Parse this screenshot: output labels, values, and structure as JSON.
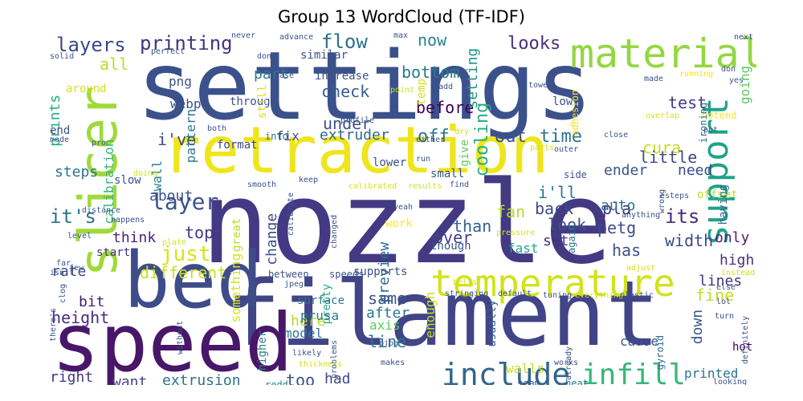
{
  "title": "Group 13 WordCloud (TF-IDF)",
  "words": [
    {
      "id": "settings",
      "text": "settings",
      "color": "#3b518b"
    },
    {
      "id": "nozzle",
      "text": "nozzle",
      "color": "#443983"
    },
    {
      "id": "filament",
      "text": "filament",
      "color": "#414487"
    },
    {
      "id": "speed",
      "text": "speed",
      "color": "#481769"
    },
    {
      "id": "retraction",
      "text": "retraction",
      "color": "#efe51c"
    },
    {
      "id": "slicer",
      "text": "slicer",
      "color": "#a0da39"
    },
    {
      "id": "bed",
      "text": "bed",
      "color": "#3e4c8a"
    },
    {
      "id": "temperature",
      "text": "temperature",
      "color": "#d2e21b"
    },
    {
      "id": "material",
      "text": "material",
      "color": "#93d741"
    },
    {
      "id": "support",
      "text": "support",
      "color": "#1fa287"
    },
    {
      "id": "layer",
      "text": "layer",
      "color": "#3b528b"
    },
    {
      "id": "include",
      "text": "include",
      "color": "#31668e"
    },
    {
      "id": "infill",
      "text": "infill",
      "color": "#35b779"
    },
    {
      "id": "printing",
      "text": "printing",
      "color": "#46337e"
    },
    {
      "id": "layers",
      "text": "layers",
      "color": "#3e4989"
    },
    {
      "id": "flow",
      "text": "flow",
      "color": "#2d708e"
    },
    {
      "id": "just",
      "text": "just",
      "color": "#d8e219"
    },
    {
      "id": "its-apos",
      "text": "it's",
      "color": "#2c728e"
    },
    {
      "id": "looks",
      "text": "looks",
      "color": "#46307e"
    },
    {
      "id": "check",
      "text": "check",
      "color": "#365c8d"
    },
    {
      "id": "now",
      "text": "now",
      "color": "#25838e"
    },
    {
      "id": "bottom",
      "text": "bottom",
      "color": "#2a788e"
    },
    {
      "id": "before",
      "text": "before",
      "color": "#440154"
    },
    {
      "id": "off",
      "text": "off",
      "color": "#2c728e"
    },
    {
      "id": "under",
      "text": "under",
      "color": "#3b528b"
    },
    {
      "id": "setting",
      "text": "setting",
      "color": "#21918c"
    },
    {
      "id": "cooling",
      "text": "cooling",
      "color": "#27ad81"
    },
    {
      "id": "out",
      "text": "out",
      "color": "#3b528b"
    },
    {
      "id": "time",
      "text": "time",
      "color": "#2c728e"
    },
    {
      "id": "test",
      "text": "test",
      "color": "#443983"
    },
    {
      "id": "cura",
      "text": "cura",
      "color": "#c2df23"
    },
    {
      "id": "ive",
      "text": "i've",
      "color": "#3f4889"
    },
    {
      "id": "extruder",
      "text": "extruder",
      "color": "#31688e"
    },
    {
      "id": "fix",
      "text": "fix",
      "color": "#3e4989"
    },
    {
      "id": "into",
      "text": "into",
      "color": "#2f6c8e"
    },
    {
      "id": "format",
      "text": "format",
      "color": "#3e4989"
    },
    {
      "id": "webp",
      "text": "webp",
      "color": "#3b528b"
    },
    {
      "id": "png",
      "text": "png",
      "color": "#3a548c"
    },
    {
      "id": "pattern",
      "text": "pattern",
      "color": "#2a788e"
    },
    {
      "id": "part",
      "text": "part",
      "color": "#2a788e"
    },
    {
      "id": "all",
      "text": "all",
      "color": "#b5de2b"
    },
    {
      "id": "prints",
      "text": "prints",
      "color": "#27ad81"
    },
    {
      "id": "calibration",
      "text": "calibration",
      "color": "#35b779"
    },
    {
      "id": "wall",
      "text": "wall",
      "color": "#26828e"
    },
    {
      "id": "steps",
      "text": "steps",
      "color": "#2c728e"
    },
    {
      "id": "about",
      "text": "about",
      "color": "#3b528b"
    },
    {
      "id": "top",
      "text": "top",
      "color": "#443a83"
    },
    {
      "id": "think",
      "text": "think",
      "color": "#482475"
    },
    {
      "id": "rate",
      "text": "rate",
      "color": "#404688"
    },
    {
      "id": "different",
      "text": "different",
      "color": "#c8e020"
    },
    {
      "id": "bit",
      "text": "bit",
      "color": "#481a6c"
    },
    {
      "id": "height",
      "text": "height",
      "color": "#472d7b"
    },
    {
      "id": "right",
      "text": "right",
      "color": "#453781"
    },
    {
      "id": "want",
      "text": "want",
      "color": "#414487"
    },
    {
      "id": "extrusion",
      "text": "extrusion",
      "color": "#2c728e"
    },
    {
      "id": "too",
      "text": "too",
      "color": "#3b528b"
    },
    {
      "id": "had",
      "text": "had",
      "color": "#3e4a89"
    },
    {
      "id": "redd",
      "text": "redd",
      "color": "#26828e"
    },
    {
      "id": "change",
      "text": "change",
      "color": "#3e4c8a"
    },
    {
      "id": "preview",
      "text": "preview",
      "color": "#2e6e8e"
    },
    {
      "id": "pretty",
      "text": "pretty",
      "color": "#28ae80"
    },
    {
      "id": "work",
      "text": "work",
      "color": "#fde725"
    },
    {
      "id": "fan",
      "text": "fan",
      "color": "#b2dd2d"
    },
    {
      "id": "ill",
      "text": "i'll",
      "color": "#2a788e"
    },
    {
      "id": "back",
      "text": "back",
      "color": "#3f4889"
    },
    {
      "id": "look",
      "text": "look",
      "color": "#3b528b"
    },
    {
      "id": "set",
      "text": "set",
      "color": "#46327e"
    },
    {
      "id": "than",
      "text": "than",
      "color": "#33638d"
    },
    {
      "id": "over",
      "text": "over",
      "color": "#424086"
    },
    {
      "id": "though",
      "text": "though",
      "color": "#39568c"
    },
    {
      "id": "fast",
      "text": "fast",
      "color": "#21a685"
    },
    {
      "id": "again",
      "text": "again",
      "color": "#2c728e"
    },
    {
      "id": "ender",
      "text": "ender",
      "color": "#3b528b"
    },
    {
      "id": "little",
      "text": "little",
      "color": "#3e4a89"
    },
    {
      "id": "need",
      "text": "need",
      "color": "#3e4989"
    },
    {
      "id": "pla",
      "text": "pla",
      "color": "#46337e"
    },
    {
      "id": "auto",
      "text": "auto",
      "color": "#2c728e"
    },
    {
      "id": "its",
      "text": "its",
      "color": "#472c7a"
    },
    {
      "id": "petg",
      "text": "petg",
      "color": "#3e4989"
    },
    {
      "id": "has",
      "text": "has",
      "color": "#3b528b"
    },
    {
      "id": "width",
      "text": "width",
      "color": "#3e4989"
    },
    {
      "id": "only",
      "text": "only",
      "color": "#481f70"
    },
    {
      "id": "high",
      "text": "high",
      "color": "#46327e"
    },
    {
      "id": "lines",
      "text": "lines",
      "color": "#46337e"
    },
    {
      "id": "fine",
      "text": "fine",
      "color": "#c0df25"
    },
    {
      "id": "offset",
      "text": "offset",
      "color": "#bddf26"
    },
    {
      "id": "having",
      "text": "having",
      "color": "#2f6c8e"
    },
    {
      "id": "something",
      "text": "something",
      "color": "#dae319"
    },
    {
      "id": "surface",
      "text": "surface",
      "color": "#2a788e"
    },
    {
      "id": "same",
      "text": "same",
      "color": "#3b528b"
    },
    {
      "id": "between",
      "text": "between",
      "color": "#3b528b"
    },
    {
      "id": "speeds",
      "text": "speeds",
      "color": "#3b528b"
    },
    {
      "id": "supports",
      "text": "supports",
      "color": "#3b528b"
    },
    {
      "id": "here",
      "text": "here",
      "color": "#b2dd2d"
    },
    {
      "id": "after",
      "text": "after",
      "color": "#2a788e"
    },
    {
      "id": "model",
      "text": "model",
      "color": "#2a788e"
    },
    {
      "id": "prusa",
      "text": "prusa",
      "color": "#2a788e"
    },
    {
      "id": "line",
      "text": "line",
      "color": "#2a788e"
    },
    {
      "id": "axis",
      "text": "axis",
      "color": "#5ec962"
    },
    {
      "id": "enough",
      "text": "enough",
      "color": "#c2df23"
    },
    {
      "id": "usually",
      "text": "usually",
      "color": "#33638d"
    },
    {
      "id": "down",
      "text": "down",
      "color": "#39568c"
    },
    {
      "id": "gyroid",
      "text": "gyroid",
      "color": "#2f6c8e"
    },
    {
      "id": "hot",
      "text": "hot",
      "color": "#440154"
    },
    {
      "id": "cause",
      "text": "cause",
      "color": "#3b528b"
    },
    {
      "id": "printed",
      "text": "printed",
      "color": "#2c728e"
    },
    {
      "id": "walls",
      "text": "walls",
      "color": "#c8e020"
    },
    {
      "id": "seam",
      "text": "seam",
      "color": "#3b528b"
    },
    {
      "id": "heat",
      "text": "heat",
      "color": "#2c728e"
    },
    {
      "id": "higher",
      "text": "higher",
      "color": "#26828e"
    },
    {
      "id": "great",
      "text": "great",
      "color": "#b8de29"
    },
    {
      "id": "start",
      "text": "start",
      "color": "#46317e"
    },
    {
      "id": "lower",
      "text": "lower",
      "color": "#3b528b"
    },
    {
      "id": "small",
      "text": "small",
      "color": "#3b528b"
    },
    {
      "id": "slow",
      "text": "slow",
      "color": "#3b528b"
    },
    {
      "id": "hotend",
      "text": "hotend",
      "color": "#fde725"
    },
    {
      "id": "side",
      "text": "side",
      "color": "#3b528b"
    },
    {
      "id": "ironing",
      "text": "ironing",
      "color": "#2c728e"
    },
    {
      "id": "adhesion",
      "text": "adhesion",
      "color": "#f1e51d"
    },
    {
      "id": "low",
      "text": "low",
      "color": "#3b528b"
    },
    {
      "id": "through",
      "text": "through",
      "color": "#3b528b"
    },
    {
      "id": "still",
      "text": "still",
      "color": "#d8e219"
    },
    {
      "id": "temp",
      "text": "temp",
      "color": "#d5e21a"
    },
    {
      "id": "increase",
      "text": "increase",
      "color": "#3b528b"
    },
    {
      "id": "similar",
      "text": "similar",
      "color": "#3b528b"
    },
    {
      "id": "around",
      "text": "around",
      "color": "#d5e21a"
    },
    {
      "id": "end",
      "text": "end",
      "color": "#3b528b"
    },
    {
      "id": "going",
      "text": "going",
      "color": "#5ec962"
    },
    {
      "id": "tool-smooth",
      "text": "smooth",
      "color": "#3b528b"
    },
    {
      "id": "pjpg",
      "text": "pjpg",
      "color": "#3b528b"
    },
    {
      "id": "jpeg",
      "text": "jpeg",
      "color": "#3b528b"
    },
    {
      "id": "stringing",
      "text": "stringing",
      "color": "#3b528b"
    },
    {
      "id": "default",
      "text": "default",
      "color": "#3b528b"
    },
    {
      "id": "tuning",
      "text": "tuning",
      "color": "#3b528b"
    },
    {
      "id": "everything",
      "text": "everything",
      "color": "#d2e21b"
    },
    {
      "id": "plastic",
      "text": "plastic",
      "color": "#3b528b"
    },
    {
      "id": "never",
      "text": "never",
      "color": "#3b528b"
    },
    {
      "id": "advance",
      "text": "advance",
      "color": "#3b528b"
    },
    {
      "id": "max",
      "text": "max",
      "color": "#3b528b"
    },
    {
      "id": "next",
      "text": "next",
      "color": "#3b528b"
    },
    {
      "id": "solid",
      "text": "solid",
      "color": "#3b528b"
    },
    {
      "id": "perfect",
      "text": "perfect",
      "color": "#3b528b"
    },
    {
      "id": "done",
      "text": "done",
      "color": "#3b528b"
    },
    {
      "id": "vase",
      "text": "vase",
      "color": "#3b528b"
    },
    {
      "id": "point",
      "text": "point",
      "color": "#d2e21b"
    },
    {
      "id": "add",
      "text": "add",
      "color": "#3b528b"
    },
    {
      "id": "tower",
      "text": "tower",
      "color": "#3b528b"
    },
    {
      "id": "made",
      "text": "made",
      "color": "#3b528b"
    },
    {
      "id": "running",
      "text": "running",
      "color": "#f1e51d"
    },
    {
      "id": "don",
      "text": "don",
      "color": "#3b528b"
    },
    {
      "id": "yes",
      "text": "yes",
      "color": "#3b528b"
    },
    {
      "id": "overlap",
      "text": "overlap",
      "color": "#d2e21b"
    },
    {
      "id": "put",
      "text": "put",
      "color": "#3b528b"
    },
    {
      "id": "close",
      "text": "close",
      "color": "#3b528b"
    },
    {
      "id": "profile",
      "text": "profile",
      "color": "#3b528b"
    },
    {
      "id": "outer",
      "text": "outer",
      "color": "#3b528b"
    },
    {
      "id": "either",
      "text": "either",
      "color": "#3b528b"
    },
    {
      "id": "dry",
      "text": "dry",
      "color": "#d2e21b"
    },
    {
      "id": "give",
      "text": "give",
      "color": "#5ec962"
    },
    {
      "id": "parts",
      "text": "parts",
      "color": "#d2e21b"
    },
    {
      "id": "both",
      "text": "both",
      "color": "#3b528b"
    },
    {
      "id": "mode",
      "text": "mode",
      "color": "#3b528b"
    },
    {
      "id": "pro",
      "text": "pro",
      "color": "#3b528b"
    },
    {
      "id": "doing",
      "text": "doing",
      "color": "#d2e21b"
    },
    {
      "id": "keep",
      "text": "keep",
      "color": "#3b528b"
    },
    {
      "id": "calibrate",
      "text": "calibrate",
      "color": "#3b528b"
    },
    {
      "id": "calibrated",
      "text": "calibrated",
      "color": "#d2e21b"
    },
    {
      "id": "run",
      "text": "run",
      "color": "#3b528b"
    },
    {
      "id": "results",
      "text": "results",
      "color": "#d2e21b"
    },
    {
      "id": "find",
      "text": "find",
      "color": "#3b528b"
    },
    {
      "id": "esteps",
      "text": "esteps",
      "color": "#3b528b"
    },
    {
      "id": "distance",
      "text": "distance",
      "color": "#3b528b"
    },
    {
      "id": "happens",
      "text": "happens",
      "color": "#3b528b"
    },
    {
      "id": "level",
      "text": "level",
      "color": "#3b528b"
    },
    {
      "id": "far",
      "text": "far",
      "color": "#3b528b"
    },
    {
      "id": "plate",
      "text": "plate",
      "color": "#d2e21b"
    },
    {
      "id": "few",
      "text": "few",
      "color": "#3b528b"
    },
    {
      "id": "isnt",
      "text": "isn't",
      "color": "#3b528b"
    },
    {
      "id": "clog",
      "text": "clog",
      "color": "#3b528b"
    },
    {
      "id": "theres",
      "text": "there's",
      "color": "#3b528b"
    },
    {
      "id": "without",
      "text": "without",
      "color": "#3b528b"
    },
    {
      "id": "likely",
      "text": "likely",
      "color": "#3b528b"
    },
    {
      "id": "problems",
      "text": "problems",
      "color": "#3b528b"
    },
    {
      "id": "thickness",
      "text": "thickness",
      "color": "#d2e21b"
    },
    {
      "id": "makes",
      "text": "makes",
      "color": "#3b528b"
    },
    {
      "id": "works",
      "text": "works",
      "color": "#3b528b"
    },
    {
      "id": "already",
      "text": "already",
      "color": "#3b528b"
    },
    {
      "id": "looking",
      "text": "looking",
      "color": "#3b528b"
    },
    {
      "id": "definitely",
      "text": "definitely",
      "color": "#3b528b"
    },
    {
      "id": "lol",
      "text": "lol",
      "color": "#3b528b"
    },
    {
      "id": "turn",
      "text": "turn",
      "color": "#3b528b"
    },
    {
      "id": "else",
      "text": "else",
      "color": "#3b528b"
    },
    {
      "id": "instead",
      "text": "instead",
      "color": "#d2e21b"
    },
    {
      "id": "adjust",
      "text": "adjust",
      "color": "#d2e21b"
    },
    {
      "id": "wrong",
      "text": "wrong",
      "color": "#3b528b"
    },
    {
      "id": "anything",
      "text": "anything",
      "color": "#3b528b"
    },
    {
      "id": "pressure",
      "text": "pressure",
      "color": "#d2e21b"
    },
    {
      "id": "belts",
      "text": "belts",
      "color": "#d2e21b"
    },
    {
      "id": "yeah",
      "text": "yeah",
      "color": "#3b528b"
    },
    {
      "id": "changed",
      "text": "changed",
      "color": "#3b528b"
    }
  ]
}
